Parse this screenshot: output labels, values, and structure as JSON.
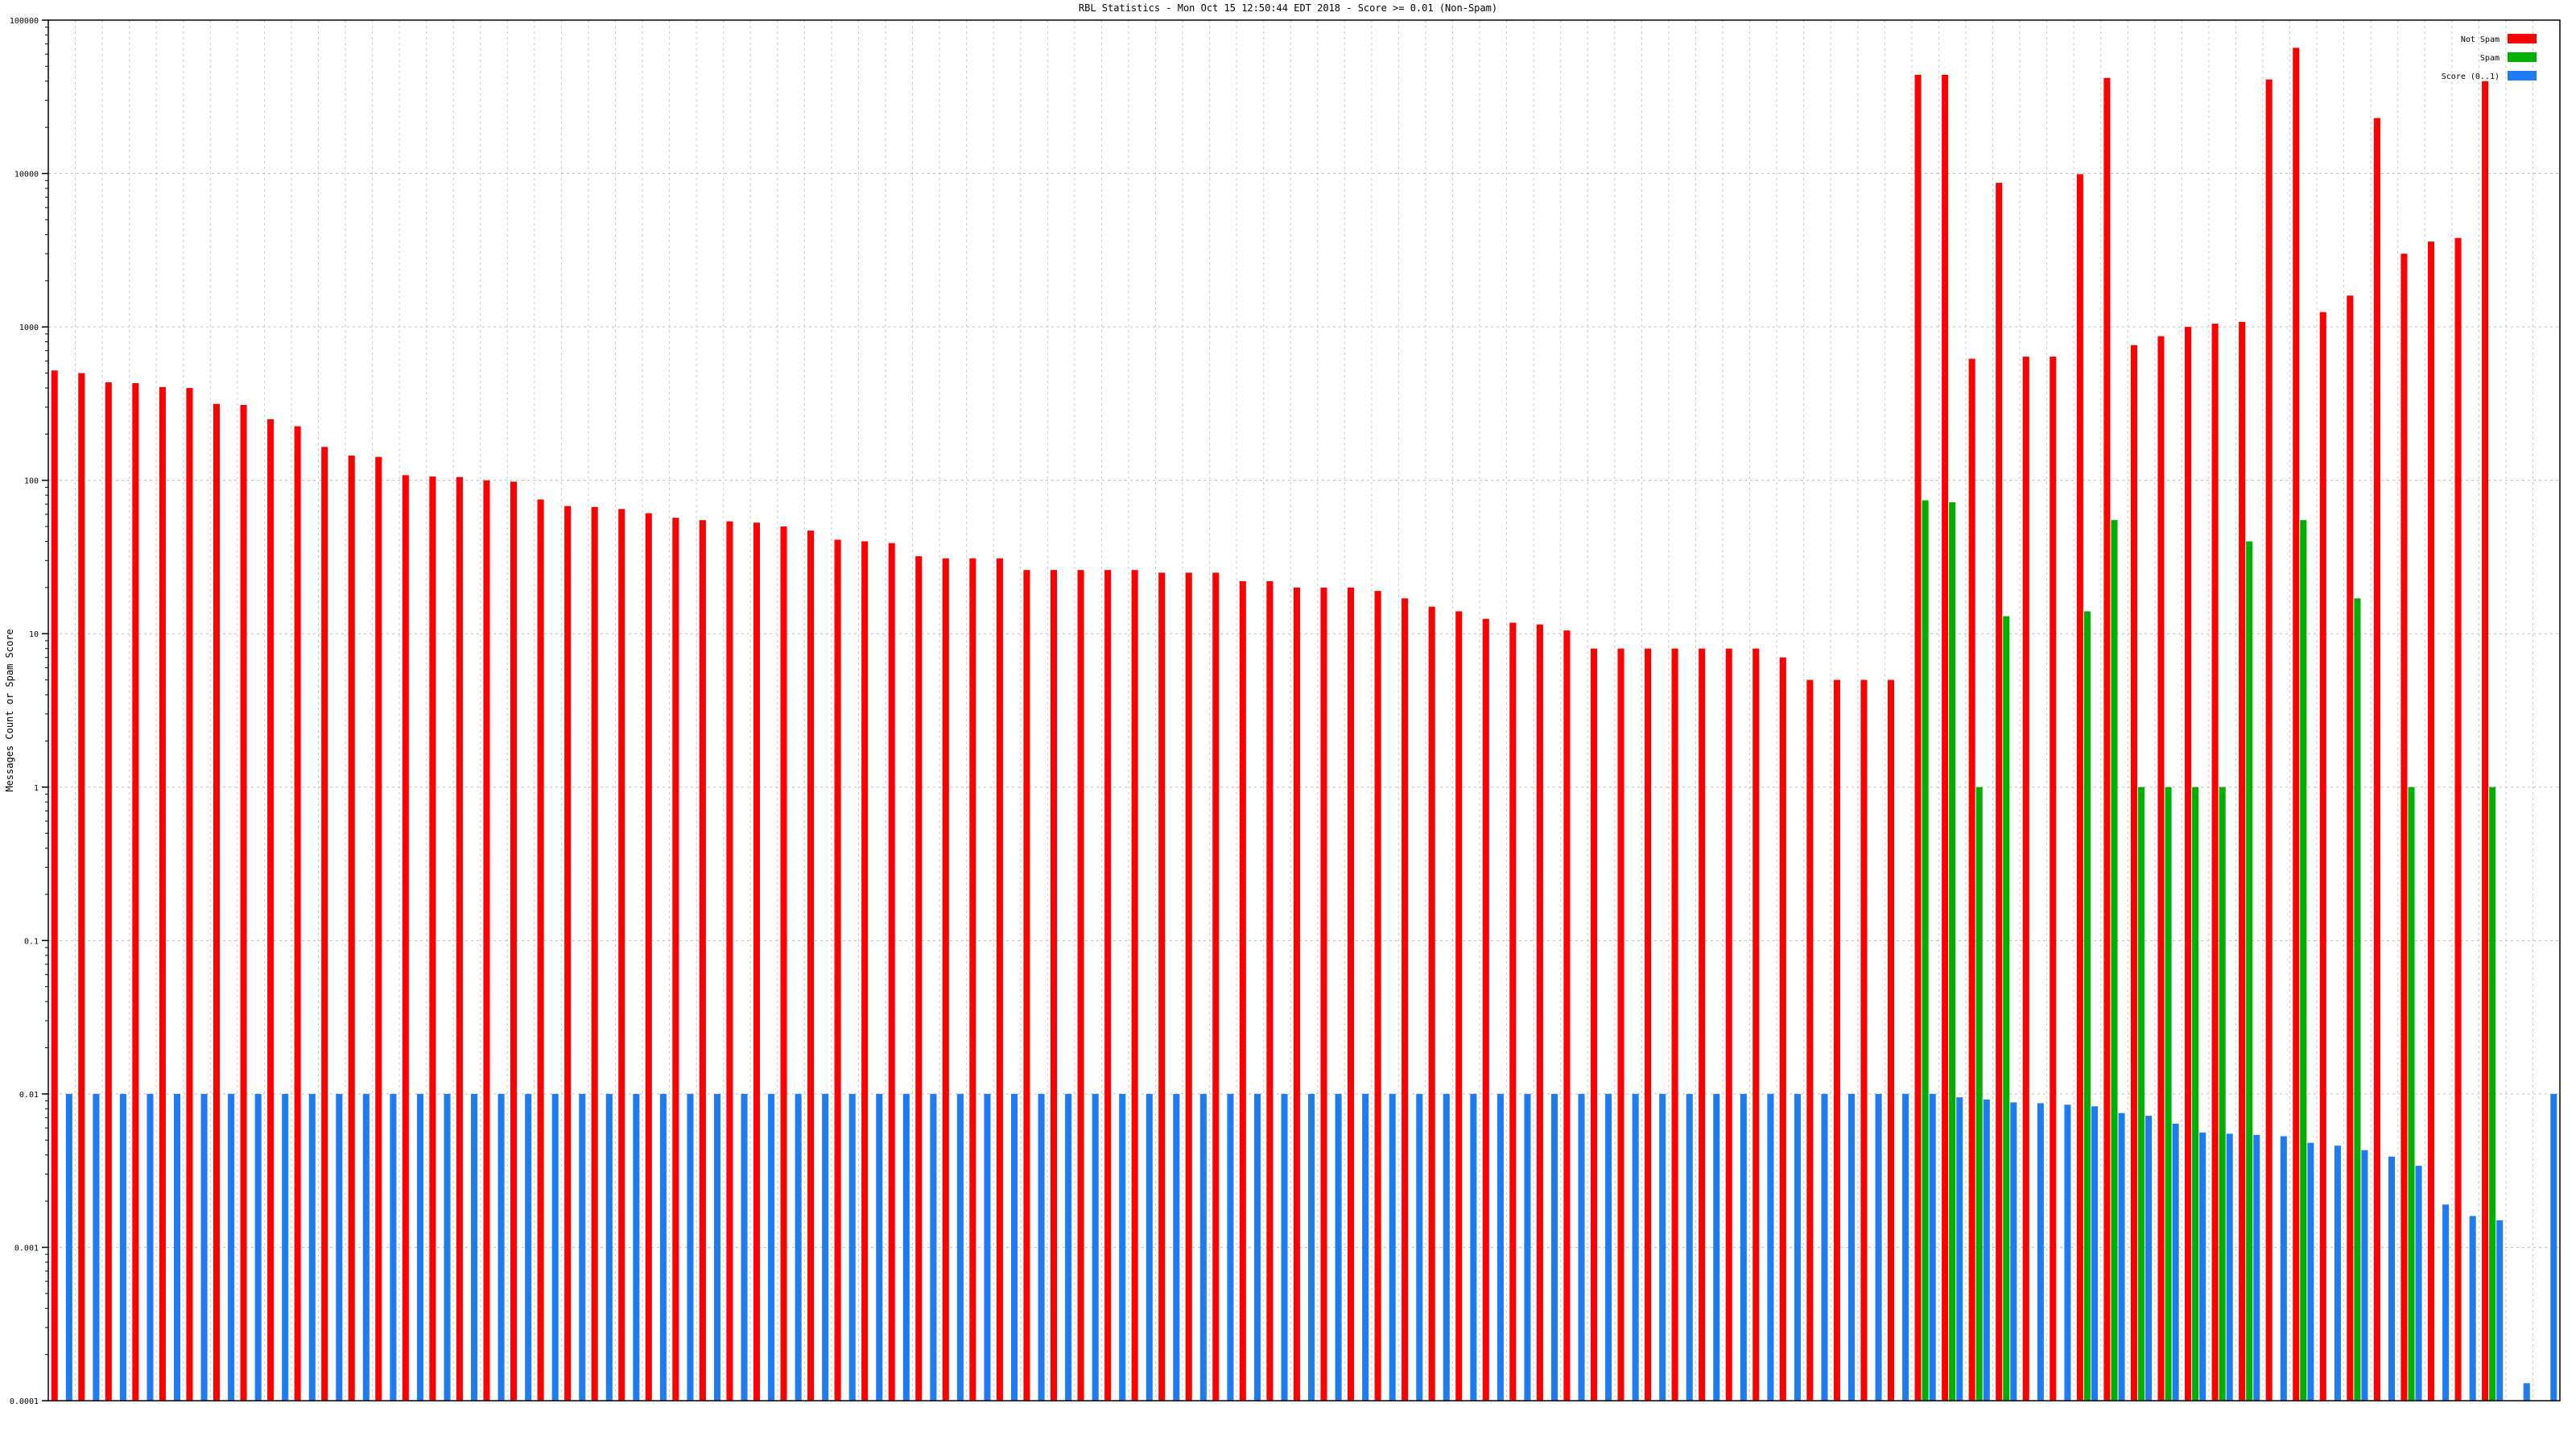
{
  "chart_data": {
    "type": "bar",
    "title": "RBL Statistics - Mon Oct 15 12:50:44 EDT 2018 - Score >= 0.01 (Non-Spam)",
    "xlabel": "",
    "ylabel": "Messages Count or Spam Score",
    "y_scale": "log",
    "ylim": [
      0.0001,
      100000
    ],
    "grid": true,
    "legend_position": "top-right",
    "y_ticks": [
      {
        "value": 0.0001,
        "label": "0.0001"
      },
      {
        "value": 0.001,
        "label": "0.001"
      },
      {
        "value": 0.01,
        "label": "0.01"
      },
      {
        "value": 0.1,
        "label": "0.1"
      },
      {
        "value": 1,
        "label": "1"
      },
      {
        "value": 10,
        "label": "10"
      },
      {
        "value": 100,
        "label": "100"
      },
      {
        "value": 1000,
        "label": "1000"
      },
      {
        "value": 10000,
        "label": "10000"
      },
      {
        "value": 100000,
        "label": "100000"
      }
    ],
    "categories": [
      "",
      "",
      "",
      "",
      "",
      "",
      "",
      "",
      "",
      "",
      "",
      "",
      "",
      "",
      "",
      "",
      "",
      "",
      "",
      "",
      "",
      "",
      "",
      "",
      "",
      "",
      "",
      "",
      "",
      "",
      "",
      "",
      "",
      "",
      "",
      "",
      "",
      "",
      "",
      "",
      "",
      "",
      "",
      "",
      "",
      "",
      "",
      "",
      "",
      "",
      "",
      "",
      "",
      "",
      "",
      "",
      "",
      "",
      "",
      "",
      "",
      "",
      "",
      "",
      "",
      "",
      "",
      "",
      "",
      "",
      "",
      "",
      "",
      "",
      "",
      "",
      "",
      "",
      "",
      "",
      "",
      "",
      "",
      "",
      "",
      "",
      "",
      "",
      "",
      "",
      "",
      "",
      ""
    ],
    "series": [
      {
        "name": "Not Spam",
        "color": "#ff0000",
        "values": [
          520,
          500,
          435,
          430,
          405,
          400,
          315,
          310,
          250,
          225,
          165,
          145,
          142,
          108,
          106,
          105,
          100,
          98,
          75,
          68,
          67,
          65,
          61,
          57,
          55,
          54,
          53,
          50,
          47,
          41,
          40,
          39,
          32,
          31,
          31,
          31,
          26,
          26,
          26,
          26,
          26,
          25,
          25,
          25,
          22,
          22,
          20,
          20,
          20,
          19,
          17,
          15,
          14,
          12.5,
          11.8,
          11.5,
          10.5,
          8,
          8,
          8,
          8,
          8,
          8,
          8,
          7,
          5,
          5,
          5,
          5,
          44000,
          44000,
          620,
          8700,
          640,
          640,
          9900,
          42000,
          760,
          870,
          1000,
          1050,
          1080,
          41000,
          66000,
          1250,
          1600,
          23000,
          3000,
          3600,
          3800,
          40000,
          0,
          0
        ]
      },
      {
        "name": "Spam",
        "color": "#00b000",
        "values": [
          0,
          0,
          0,
          0,
          0,
          0,
          0,
          0,
          0,
          0,
          0,
          0,
          0,
          0,
          0,
          0,
          0,
          0,
          0,
          0,
          0,
          0,
          0,
          0,
          0,
          0,
          0,
          0,
          0,
          0,
          0,
          0,
          0,
          0,
          0,
          0,
          0,
          0,
          0,
          0,
          0,
          0,
          0,
          0,
          0,
          0,
          0,
          0,
          0,
          0,
          0,
          0,
          0,
          0,
          0,
          0,
          0,
          0,
          0,
          0,
          0,
          0,
          0,
          0,
          0,
          0,
          0,
          0,
          0,
          74,
          72,
          1,
          13,
          0,
          0,
          14,
          55,
          1,
          1,
          1,
          1,
          40,
          0,
          55,
          0,
          17,
          0,
          1,
          0,
          0,
          1,
          0,
          0
        ]
      },
      {
        "name": "Score (0..1)",
        "color": "#1e7cf0",
        "values": [
          0.01,
          0.01,
          0.01,
          0.01,
          0.01,
          0.01,
          0.01,
          0.01,
          0.01,
          0.01,
          0.01,
          0.01,
          0.01,
          0.01,
          0.01,
          0.01,
          0.01,
          0.01,
          0.01,
          0.01,
          0.01,
          0.01,
          0.01,
          0.01,
          0.01,
          0.01,
          0.01,
          0.01,
          0.01,
          0.01,
          0.01,
          0.01,
          0.01,
          0.01,
          0.01,
          0.01,
          0.01,
          0.01,
          0.01,
          0.01,
          0.01,
          0.01,
          0.01,
          0.01,
          0.01,
          0.01,
          0.01,
          0.01,
          0.01,
          0.01,
          0.01,
          0.01,
          0.01,
          0.01,
          0.01,
          0.01,
          0.01,
          0.01,
          0.01,
          0.01,
          0.01,
          0.01,
          0.01,
          0.01,
          0.01,
          0.01,
          0.01,
          0.01,
          0.01,
          0.01,
          0.0095,
          0.0092,
          0.0088,
          0.0087,
          0.0085,
          0.0083,
          0.0075,
          0.0072,
          0.0064,
          0.0056,
          0.0055,
          0.0054,
          0.0053,
          0.0048,
          0.0046,
          0.0043,
          0.0039,
          0.0034,
          0.0019,
          0.0016,
          0.0015,
          0.00013,
          0.01
        ]
      }
    ]
  }
}
